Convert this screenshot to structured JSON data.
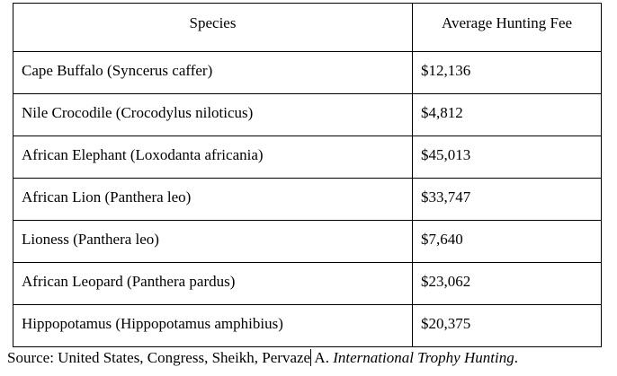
{
  "table": {
    "headers": [
      "Species",
      "Average Hunting Fee"
    ],
    "rows": [
      [
        "Cape Buffalo (Syncerus caffer)",
        "$12,136"
      ],
      [
        "Nile Crocodile (Crocodylus niloticus)",
        "$4,812"
      ],
      [
        "African Elephant (Loxodanta africania)",
        "$45,013"
      ],
      [
        "African Lion (Panthera leo)",
        "$33,747"
      ],
      [
        "Lioness (Panthera leo)",
        "$7,640"
      ],
      [
        "African Leopard (Panthera pardus)",
        "$23,062"
      ],
      [
        "Hippopotamus (Hippopotamus amphibius)",
        "$20,375"
      ]
    ]
  },
  "source": {
    "prefix": "Source: United States, Congress, Sheikh, Pervaze",
    "mid": " A. ",
    "title": "International Trophy Hunting",
    "suffix": "."
  }
}
